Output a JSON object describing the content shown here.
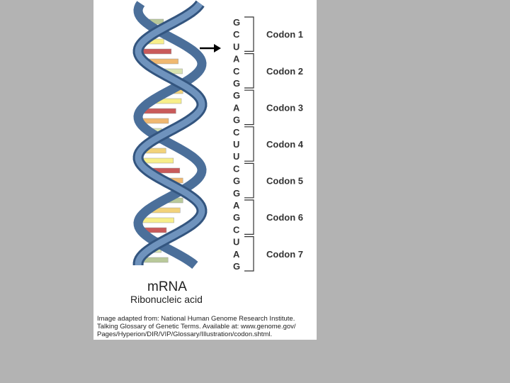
{
  "bases": [
    "G",
    "C",
    "U",
    "A",
    "C",
    "G",
    "G",
    "A",
    "G",
    "C",
    "U",
    "U",
    "C",
    "G",
    "G",
    "A",
    "G",
    "C",
    "U",
    "A",
    "G"
  ],
  "codons": [
    "Codon 1",
    "Codon 2",
    "Codon 3",
    "Codon 4",
    "Codon 5",
    "Codon 6",
    "Codon 7"
  ],
  "title": "mRNA",
  "subtitle": "Ribonucleic acid",
  "caption": [
    "Image adapted from: National Human Genome Research Institute.",
    "Talking Glossary of Genetic Terms. Available at: www.genome.gov/",
    "Pages/Hyperion/DIR/VIP/Glossary/Illustration/codon.shtml."
  ]
}
